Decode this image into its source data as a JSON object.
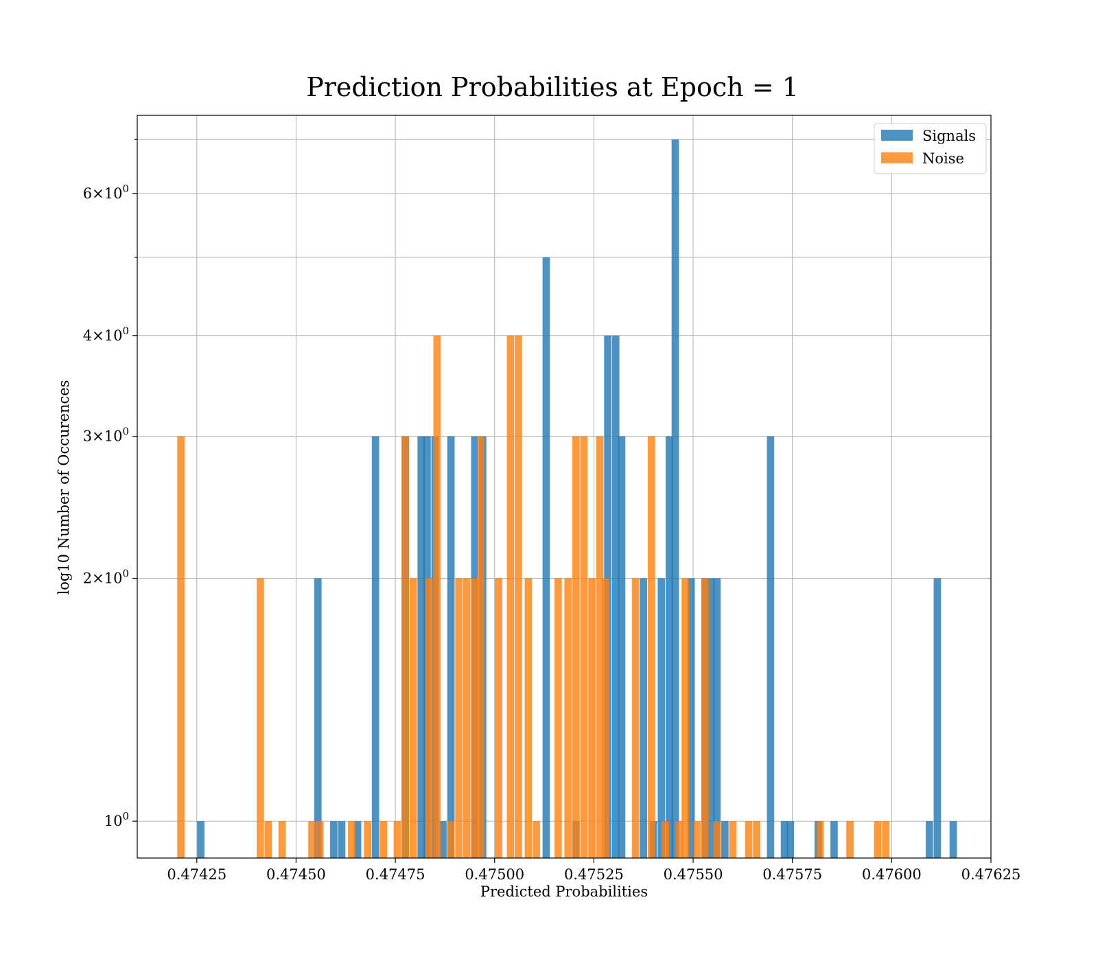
{
  "chart_data": {
    "type": "bar",
    "title": "Prediction Probabilities at Epoch = 1",
    "xlabel": "Predicted Probabilities",
    "ylabel": "log10 Number of Occurences",
    "xlim": [
      0.4741,
      0.47625
    ],
    "ylim": [
      0.9,
      7.5
    ],
    "y_scale": "log",
    "grid": true,
    "legend_position": "top-right",
    "bar_width": 1.85e-05,
    "x_ticks": [
      {
        "value": 0.47425,
        "label": "0.47425"
      },
      {
        "value": 0.4745,
        "label": "0.47450"
      },
      {
        "value": 0.47475,
        "label": "0.47475"
      },
      {
        "value": 0.475,
        "label": "0.47500"
      },
      {
        "value": 0.47525,
        "label": "0.47525"
      },
      {
        "value": 0.4755,
        "label": "0.47550"
      },
      {
        "value": 0.47575,
        "label": "0.47575"
      },
      {
        "value": 0.476,
        "label": "0.47600"
      },
      {
        "value": 0.47625,
        "label": "0.47625"
      }
    ],
    "y_ticks": [
      {
        "value": 1,
        "base": "10",
        "exp": "0",
        "mantissa": ""
      },
      {
        "value": 2,
        "base": "10",
        "exp": "0",
        "mantissa": "2"
      },
      {
        "value": 3,
        "base": "10",
        "exp": "0",
        "mantissa": "3"
      },
      {
        "value": 4,
        "base": "10",
        "exp": "0",
        "mantissa": "4"
      },
      {
        "value": 6,
        "base": "10",
        "exp": "0",
        "mantissa": "6"
      }
    ],
    "y_minor_gridlines": [
      5,
      7
    ],
    "series": [
      {
        "name": "Signals",
        "color": "#1f77b4",
        "x": [
          0.47426,
          0.474555,
          0.474595,
          0.474615,
          0.474655,
          0.4747,
          0.474775,
          0.474815,
          0.47483,
          0.47485,
          0.47487,
          0.47489,
          0.47495,
          0.47497,
          0.47513,
          0.475205,
          0.475285,
          0.475305,
          0.47532,
          0.475375,
          0.4754,
          0.47542,
          0.47544,
          0.475455,
          0.475495,
          0.47553,
          0.475545,
          0.47556,
          0.47558,
          0.475695,
          0.47573,
          0.475745,
          0.475815,
          0.475855,
          0.476095,
          0.476115,
          0.476155
        ],
        "values": [
          1,
          2,
          1,
          1,
          1,
          3,
          3,
          3,
          3,
          3,
          1,
          3,
          3,
          3,
          5,
          1,
          4,
          4,
          3,
          2,
          1,
          2,
          3,
          7,
          2,
          2,
          2,
          2,
          1,
          3,
          1,
          1,
          1,
          1,
          1,
          2,
          1
        ]
      },
      {
        "name": "Noise",
        "color": "#ff7f0e",
        "x": [
          0.47421,
          0.47441,
          0.47443,
          0.474465,
          0.47454,
          0.47456,
          0.47464,
          0.47468,
          0.47472,
          0.474755,
          0.474775,
          0.474795,
          0.474835,
          0.474855,
          0.47489,
          0.47491,
          0.47493,
          0.47495,
          0.474965,
          0.47501,
          0.47504,
          0.47506,
          0.475085,
          0.475105,
          0.47516,
          0.475185,
          0.475205,
          0.475225,
          0.475245,
          0.475265,
          0.47528,
          0.475355,
          0.475395,
          0.47543,
          0.475465,
          0.47548,
          0.47551,
          0.47553,
          0.47556,
          0.4756,
          0.47564,
          0.47566,
          0.47582,
          0.475895,
          0.475965,
          0.475985
        ],
        "values": [
          3,
          2,
          1,
          1,
          1,
          1,
          1,
          1,
          1,
          1,
          3,
          2,
          2,
          4,
          1,
          2,
          2,
          2,
          3,
          2,
          4,
          4,
          2,
          1,
          2,
          2,
          3,
          3,
          2,
          3,
          2,
          2,
          3,
          1,
          1,
          2,
          1,
          2,
          1,
          1,
          1,
          1,
          1,
          1,
          1,
          1
        ]
      }
    ]
  }
}
